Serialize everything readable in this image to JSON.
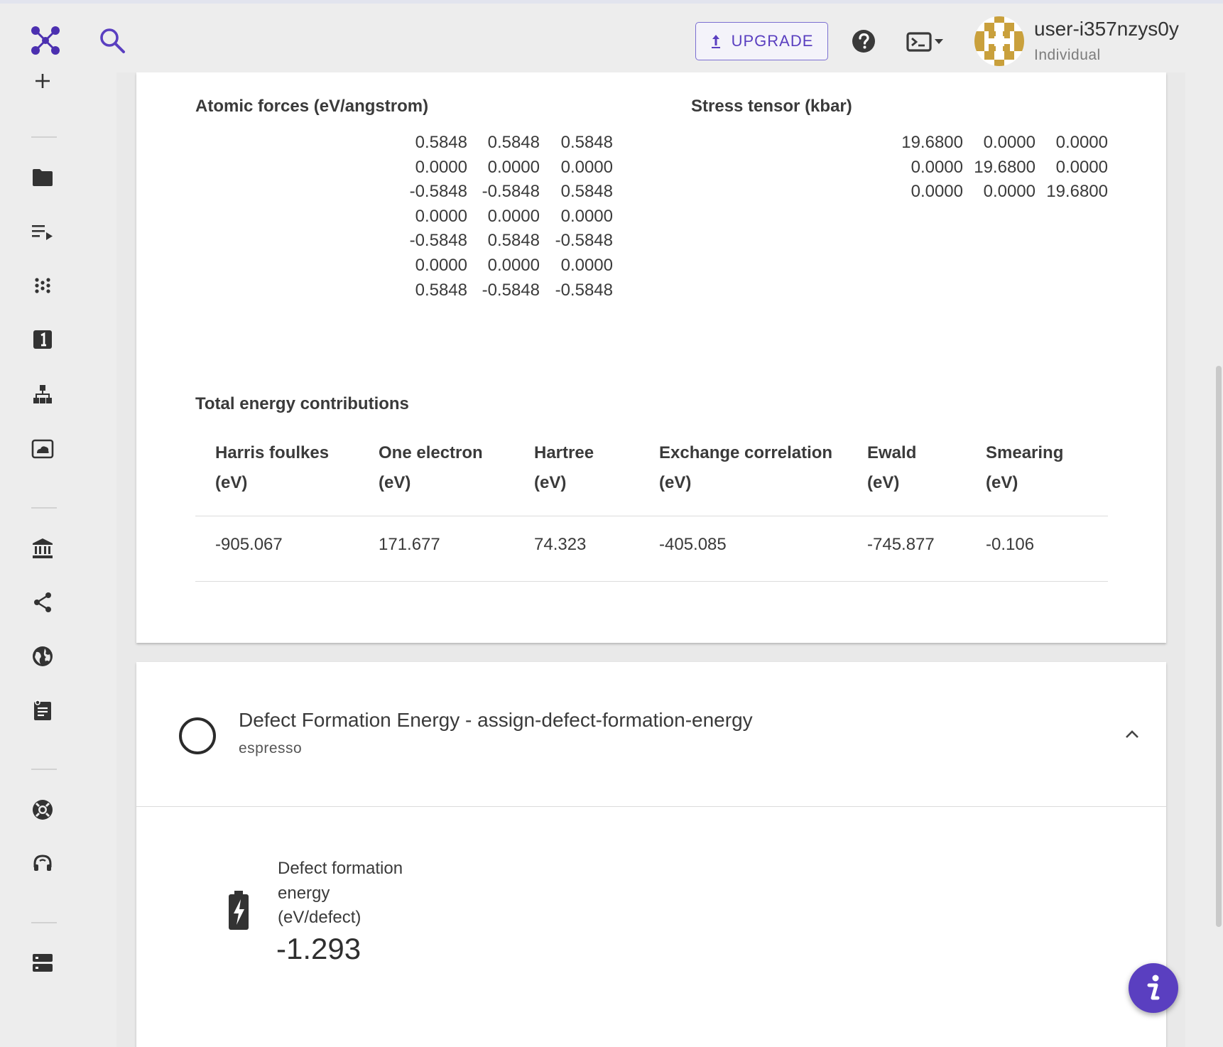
{
  "header": {
    "upgrade_label": "UPGRADE",
    "user_name": "user-i357nzys0y",
    "user_plan": "Individual"
  },
  "colors": {
    "accent": "#5a3fc0",
    "avatar_gold": "#c9a03c"
  },
  "sidebar": {
    "items": [
      {
        "name": "add",
        "icon": "plus-icon"
      },
      {
        "name": "projects",
        "icon": "folder-icon"
      },
      {
        "name": "jobs",
        "icon": "playlist-play-icon"
      },
      {
        "name": "materials",
        "icon": "dots-grid-icon"
      },
      {
        "name": "numbered",
        "icon": "number-one-box-icon"
      },
      {
        "name": "workflows",
        "icon": "sitemap-icon"
      },
      {
        "name": "dropbox",
        "icon": "cloud-box-icon"
      },
      {
        "name": "bank",
        "icon": "bank-icon"
      },
      {
        "name": "share",
        "icon": "share-icon"
      },
      {
        "name": "explore",
        "icon": "globe-icon"
      },
      {
        "name": "notes",
        "icon": "notes-icon"
      },
      {
        "name": "help",
        "icon": "lifebuoy-icon"
      },
      {
        "name": "support",
        "icon": "headset-icon"
      },
      {
        "name": "servers",
        "icon": "server-icon"
      }
    ]
  },
  "forces": {
    "title": "Atomic forces (eV/angstrom)",
    "rows": [
      [
        "0.5848",
        "0.5848",
        "0.5848"
      ],
      [
        "0.0000",
        "0.0000",
        "0.0000"
      ],
      [
        "-0.5848",
        "-0.5848",
        "0.5848"
      ],
      [
        "0.0000",
        "0.0000",
        "0.0000"
      ],
      [
        "-0.5848",
        "0.5848",
        "-0.5848"
      ],
      [
        "0.0000",
        "0.0000",
        "0.0000"
      ],
      [
        "0.5848",
        "-0.5848",
        "-0.5848"
      ]
    ]
  },
  "stress": {
    "title": "Stress tensor (kbar)",
    "rows": [
      [
        "19.6800",
        "0.0000",
        "0.0000"
      ],
      [
        "0.0000",
        "19.6800",
        "0.0000"
      ],
      [
        "0.0000",
        "0.0000",
        "19.6800"
      ]
    ]
  },
  "energy": {
    "title": "Total energy contributions",
    "headers": [
      [
        "Harris foulkes",
        "(eV)"
      ],
      [
        "One electron",
        "(eV)"
      ],
      [
        "Hartree",
        "(eV)"
      ],
      [
        "Exchange correlation",
        "(eV)"
      ],
      [
        "Ewald",
        "(eV)"
      ],
      [
        "Smearing",
        "(eV)"
      ]
    ],
    "values": [
      "-905.067",
      "171.677",
      "74.323",
      "-405.085",
      "-745.877",
      "-0.106"
    ]
  },
  "unit2": {
    "title": "Defect Formation Energy - assign-defect-formation-energy",
    "subtitle": "espresso",
    "result_label_lines": [
      "Defect formation",
      "energy",
      "(eV/defect)"
    ],
    "result_value": "-1.293"
  }
}
